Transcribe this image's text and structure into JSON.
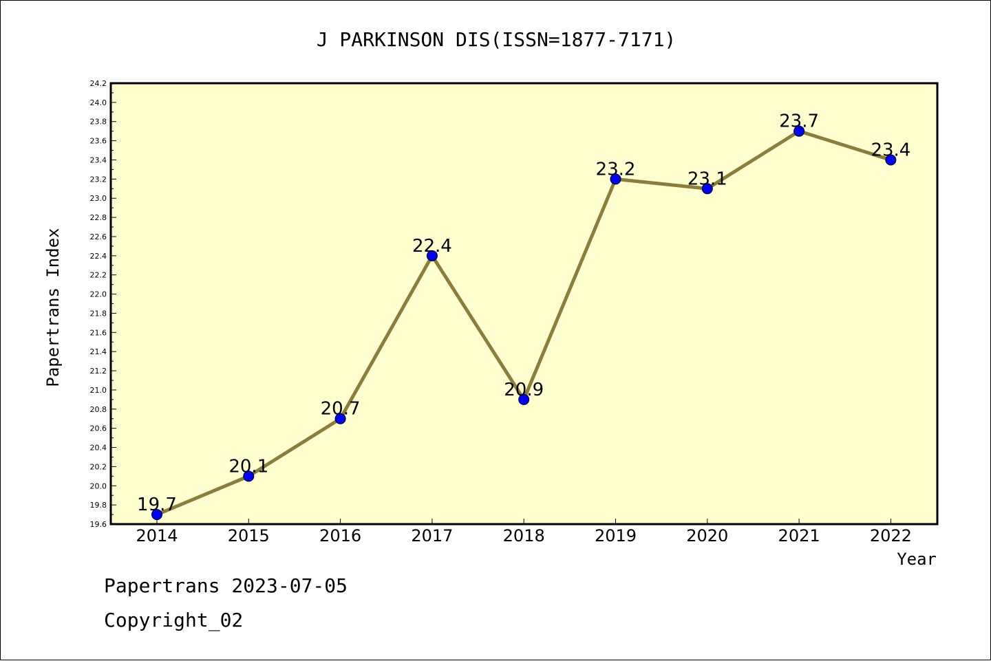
{
  "chart_data": {
    "type": "line",
    "title": "J PARKINSON DIS(ISSN=1877-7171)",
    "xlabel": "Year",
    "ylabel": "Papertrans Index",
    "x": [
      "2014",
      "2015",
      "2016",
      "2017",
      "2018",
      "2019",
      "2020",
      "2021",
      "2022"
    ],
    "series": [
      {
        "values": [
          19.7,
          20.1,
          20.7,
          22.4,
          20.9,
          23.2,
          23.1,
          23.7,
          23.4
        ]
      }
    ],
    "data_labels": [
      "19.7",
      "20.1",
      "20.7",
      "22.4",
      "20.9",
      "23.2",
      "23.1",
      "23.7",
      "23.4"
    ],
    "ylim": [
      19.6,
      24.2
    ],
    "y_ticks": [
      "19.6",
      "19.8",
      "20.0",
      "20.2",
      "20.4",
      "20.6",
      "20.8",
      "21.0",
      "21.2",
      "21.4",
      "21.6",
      "21.8",
      "22.0",
      "22.2",
      "22.4",
      "22.6",
      "22.8",
      "23.0",
      "23.2",
      "23.4",
      "23.6",
      "23.8",
      "24.0",
      "24.2"
    ],
    "grid": false,
    "legend": "none",
    "colors": {
      "plot_background": "#ffffd0",
      "line": "#8b7d3a",
      "marker": "#0000ff"
    }
  },
  "footer": {
    "line1": "Papertrans 2023-07-05",
    "line2": "Copyright_02"
  }
}
